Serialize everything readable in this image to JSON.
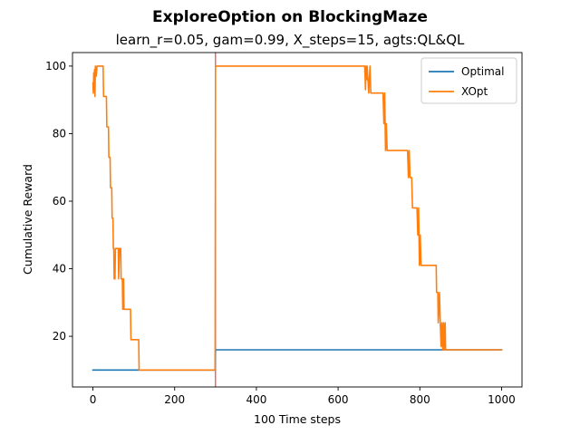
{
  "chart_data": {
    "type": "line",
    "title": "ExploreOption on BlockingMaze",
    "subtitle": "learn_r=0.05, gam=0.99, X_steps=15, agts:QL&QL",
    "xlabel": "100 Time steps",
    "ylabel": "Cumulative Reward",
    "xlim": [
      -50,
      1050
    ],
    "ylim": [
      5,
      104
    ],
    "x_ticks": [
      0,
      200,
      400,
      600,
      800,
      1000
    ],
    "y_ticks": [
      20,
      40,
      60,
      80,
      100
    ],
    "grid": false,
    "legend_position": "top-right",
    "vline": {
      "x": 300,
      "color": "#d62728"
    },
    "series": [
      {
        "name": "Optimal",
        "color": "#1f77b4",
        "points": [
          [
            0,
            10
          ],
          [
            299,
            10
          ],
          [
            300,
            16
          ],
          [
            1000,
            16
          ]
        ]
      },
      {
        "name": "XOpt",
        "color": "#ff7f0e",
        "points": [
          [
            0,
            95
          ],
          [
            1,
            92
          ],
          [
            2,
            98
          ],
          [
            3,
            93
          ],
          [
            4,
            99
          ],
          [
            5,
            91
          ],
          [
            6,
            100
          ],
          [
            8,
            97
          ],
          [
            10,
            100
          ],
          [
            20,
            100
          ],
          [
            21,
            100
          ],
          [
            22,
            100
          ],
          [
            23,
            100
          ],
          [
            24,
            100
          ],
          [
            25,
            100
          ],
          [
            26,
            91
          ],
          [
            33,
            91
          ],
          [
            34,
            82
          ],
          [
            38,
            82
          ],
          [
            39,
            73
          ],
          [
            42,
            73
          ],
          [
            43,
            64
          ],
          [
            46,
            64
          ],
          [
            47,
            55
          ],
          [
            49,
            55
          ],
          [
            50,
            46
          ],
          [
            51,
            46
          ],
          [
            52,
            37
          ],
          [
            54,
            37
          ],
          [
            55,
            46
          ],
          [
            62,
            46
          ],
          [
            63,
            37
          ],
          [
            65,
            46
          ],
          [
            68,
            46
          ],
          [
            69,
            37
          ],
          [
            72,
            37
          ],
          [
            73,
            28
          ],
          [
            75,
            37
          ],
          [
            76,
            28
          ],
          [
            82,
            28
          ],
          [
            83,
            28
          ],
          [
            92,
            28
          ],
          [
            93,
            19
          ],
          [
            112,
            19
          ],
          [
            113,
            10
          ],
          [
            299,
            10
          ],
          [
            300,
            100
          ],
          [
            665,
            100
          ],
          [
            666,
            97
          ],
          [
            667,
            93
          ],
          [
            668,
            100
          ],
          [
            670,
            96
          ],
          [
            671,
            100
          ],
          [
            675,
            92
          ],
          [
            678,
            100
          ],
          [
            680,
            92
          ],
          [
            710,
            92
          ],
          [
            712,
            83
          ],
          [
            714,
            92
          ],
          [
            716,
            75
          ],
          [
            718,
            83
          ],
          [
            720,
            75
          ],
          [
            770,
            75
          ],
          [
            772,
            67
          ],
          [
            774,
            75
          ],
          [
            776,
            67
          ],
          [
            780,
            67
          ],
          [
            782,
            58
          ],
          [
            793,
            58
          ],
          [
            795,
            50
          ],
          [
            797,
            58
          ],
          [
            799,
            41
          ],
          [
            801,
            50
          ],
          [
            803,
            41
          ],
          [
            840,
            41
          ],
          [
            841,
            33
          ],
          [
            844,
            33
          ],
          [
            845,
            24
          ],
          [
            848,
            33
          ],
          [
            850,
            24
          ],
          [
            852,
            17
          ],
          [
            854,
            24
          ],
          [
            856,
            16
          ],
          [
            858,
            24
          ],
          [
            860,
            16
          ],
          [
            862,
            24
          ],
          [
            863,
            16
          ],
          [
            1000,
            16
          ]
        ]
      }
    ]
  }
}
